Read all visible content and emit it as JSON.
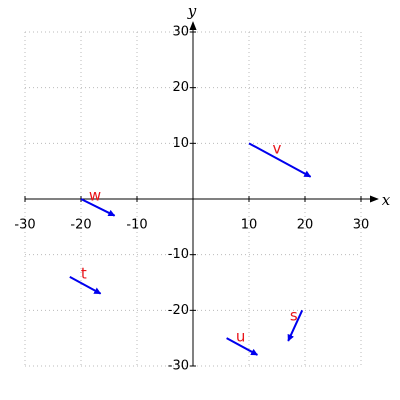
{
  "chart_data": {
    "type": "vector",
    "x_label": "x",
    "y_label": "y",
    "xlim": [
      -30,
      30
    ],
    "ylim": [
      -30,
      30
    ],
    "xticks": [
      -30,
      -20,
      -10,
      10,
      20,
      30
    ],
    "yticks": [
      -30,
      -20,
      -10,
      10,
      20,
      30
    ],
    "grid": true,
    "color": "#0000ee",
    "label_color": "#e8141a",
    "vectors": [
      {
        "name": "v",
        "x0": 10,
        "y0": 10,
        "x1": 21,
        "y1": 4,
        "label_x": 15,
        "label_y": 9
      },
      {
        "name": "w",
        "x0": -20,
        "y0": 0,
        "x1": -14,
        "y1": -3,
        "label_x": -17.5,
        "label_y": 0.5
      },
      {
        "name": "t",
        "x0": -22,
        "y0": -14,
        "x1": -16.5,
        "y1": -17,
        "label_x": -19.5,
        "label_y": -13.5
      },
      {
        "name": "u",
        "x0": 6,
        "y0": -25,
        "x1": 11.5,
        "y1": -28,
        "label_x": 8.5,
        "label_y": -24.8
      },
      {
        "name": "s",
        "x0": 19.5,
        "y0": -20,
        "x1": 17,
        "y1": -25.5,
        "label_x": 18,
        "label_y": -21
      }
    ]
  }
}
